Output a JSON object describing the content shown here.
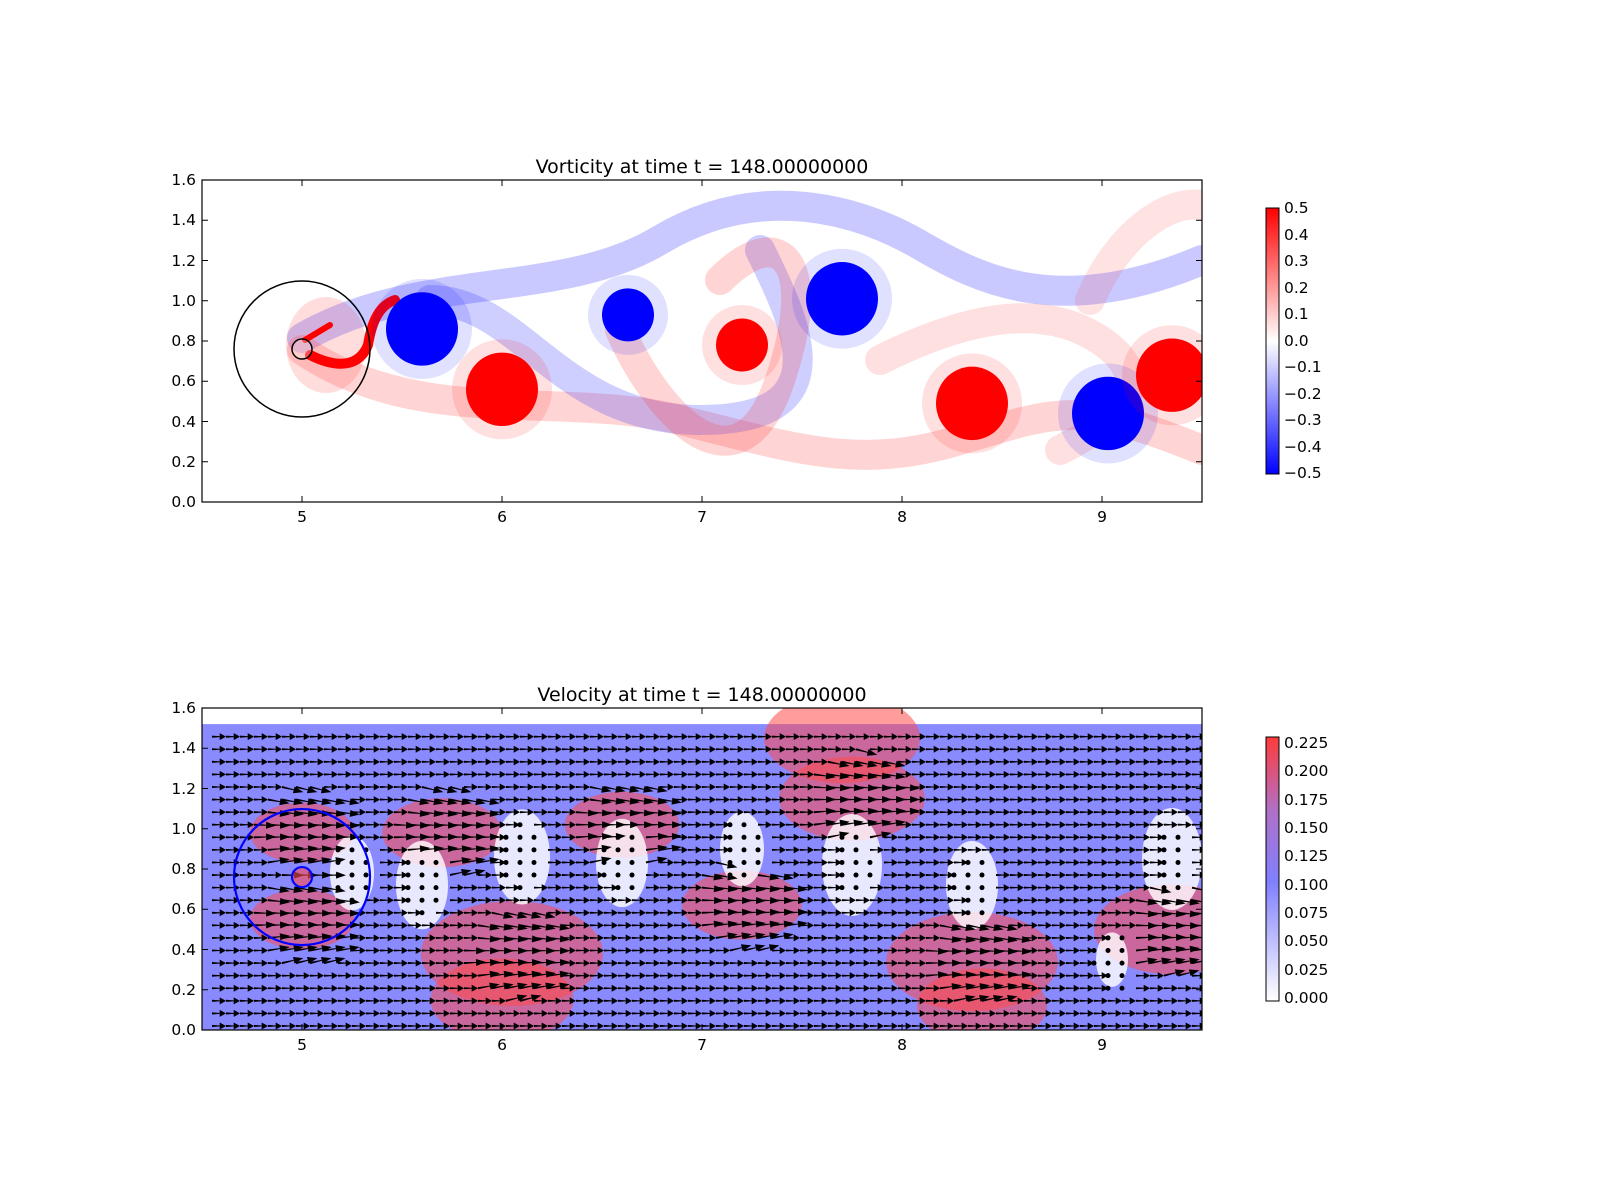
{
  "chart_data": [
    {
      "type": "heatmap",
      "title": "Vorticity at time t =   148.00000000",
      "xlim": [
        4.5,
        9.5
      ],
      "ylim": [
        0.0,
        1.6
      ],
      "xticks": [
        "5",
        "6",
        "7",
        "8",
        "9"
      ],
      "yticks": [
        "0.0",
        "0.2",
        "0.4",
        "0.6",
        "0.8",
        "1.0",
        "1.2",
        "1.4",
        "1.6"
      ],
      "colormap": "bwr",
      "colors": {
        "low": "#0000ff",
        "mid": "#ffffff",
        "high": "#ff0000"
      },
      "colorbar": {
        "range": [
          -0.5,
          0.5
        ],
        "ticks": [
          "0.5",
          "0.4",
          "0.3",
          "0.2",
          "0.1",
          "0.0",
          "−0.1",
          "−0.2",
          "−0.3",
          "−0.4",
          "−0.5"
        ]
      },
      "vortices": [
        {
          "x": 5.6,
          "y": 0.86,
          "strength": -0.5
        },
        {
          "x": 6.0,
          "y": 0.56,
          "strength": 0.5
        },
        {
          "x": 6.63,
          "y": 0.93,
          "strength": -0.5
        },
        {
          "x": 7.2,
          "y": 0.78,
          "strength": 0.5
        },
        {
          "x": 7.7,
          "y": 1.01,
          "strength": -0.5
        },
        {
          "x": 8.35,
          "y": 0.49,
          "strength": 0.5
        },
        {
          "x": 9.03,
          "y": 0.44,
          "strength": -0.5
        },
        {
          "x": 9.35,
          "y": 0.63,
          "strength": 0.5
        }
      ],
      "circles": [
        {
          "x": 5.0,
          "y": 0.76,
          "r": 0.34,
          "color": "#000000"
        },
        {
          "x": 5.0,
          "y": 0.76,
          "r": 0.05,
          "color": "#000000"
        }
      ]
    },
    {
      "type": "heatmap",
      "title": "Velocity at time t =   148.00000000",
      "xlim": [
        4.5,
        9.5
      ],
      "ylim": [
        0.0,
        1.6
      ],
      "xticks": [
        "5",
        "6",
        "7",
        "8",
        "9"
      ],
      "yticks": [
        "0.0",
        "0.2",
        "0.4",
        "0.6",
        "0.8",
        "1.0",
        "1.2",
        "1.4",
        "1.6"
      ],
      "domain_top": 1.52,
      "colors": {
        "zero": "#ffffff",
        "mid": "#8080ff",
        "high": "#ff3b3b"
      },
      "colorbar": {
        "range": [
          0.0,
          0.235
        ],
        "ticks": [
          "0.225",
          "0.200",
          "0.175",
          "0.150",
          "0.125",
          "0.100",
          "0.075",
          "0.050",
          "0.025",
          "0.000"
        ]
      },
      "circles": [
        {
          "x": 5.0,
          "y": 0.76,
          "r": 0.34,
          "color": "#0000ff"
        },
        {
          "x": 5.0,
          "y": 0.76,
          "r": 0.05,
          "color": "#0000ff"
        }
      ]
    }
  ]
}
